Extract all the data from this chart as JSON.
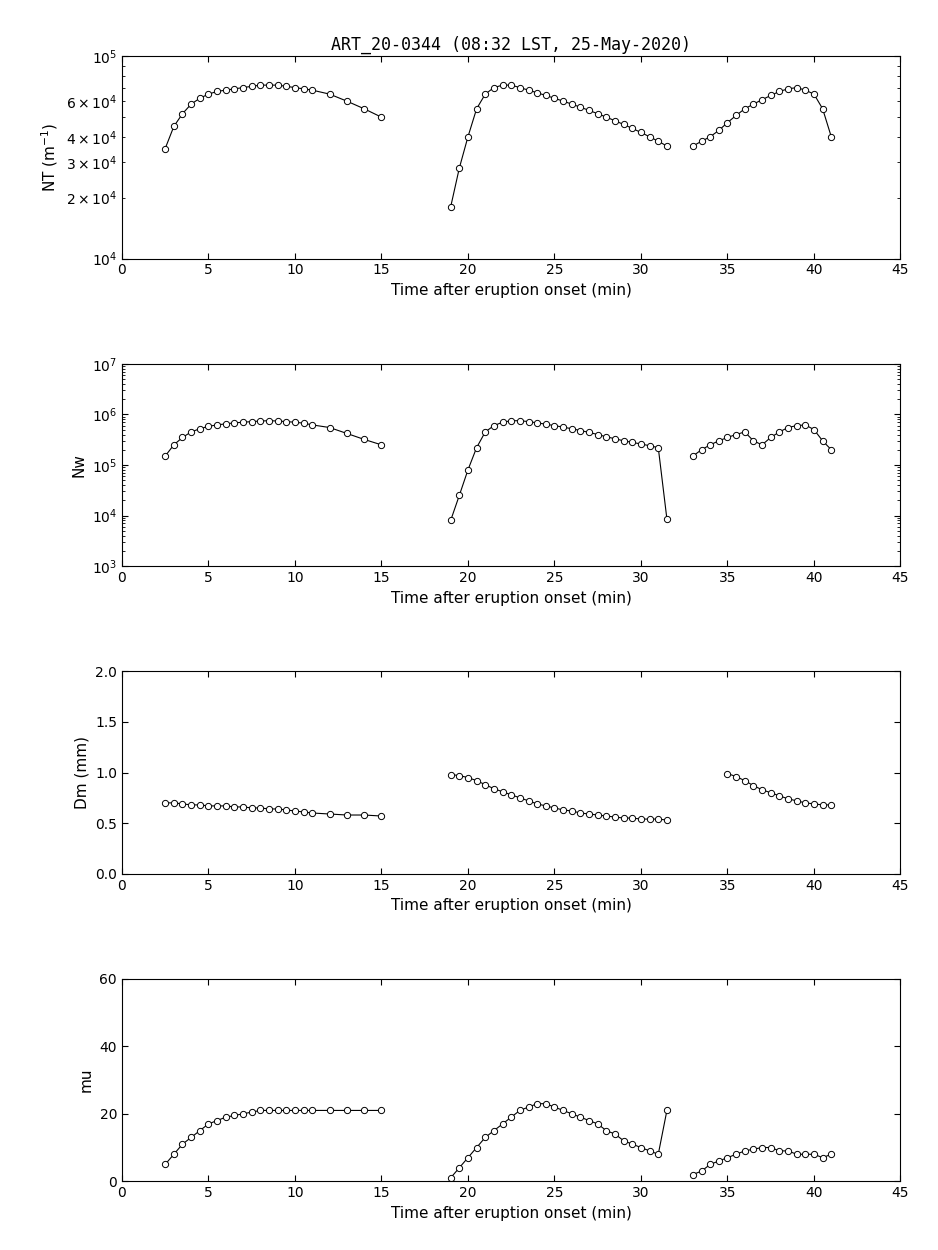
{
  "title": "ART_20-0344 (08:32 LST, 25-May-2020)",
  "xlabel": "Time after eruption onset (min)",
  "xlim": [
    0,
    45
  ],
  "xticks": [
    0,
    5,
    10,
    15,
    20,
    25,
    30,
    35,
    40,
    45
  ],
  "NT_seg1_time": [
    2.5,
    3,
    3.5,
    4,
    4.5,
    5,
    5.5,
    6,
    6.5,
    7,
    7.5,
    8,
    8.5,
    9,
    9.5,
    10,
    10.5,
    11,
    12,
    13,
    14,
    15
  ],
  "NT_seg1_vals": [
    35000.0,
    45000.0,
    52000.0,
    58000.0,
    62000.0,
    65000.0,
    67000.0,
    68000.0,
    69000.0,
    70000.0,
    71000.0,
    72000.0,
    72000.0,
    72000.0,
    71000.0,
    70000.0,
    69000.0,
    68000.0,
    65000.0,
    60000.0,
    55000.0,
    50000.0
  ],
  "NT_seg2_time": [
    19,
    19.5,
    20,
    20.5,
    21,
    21.5,
    22,
    22.5,
    23,
    23.5,
    24,
    24.5,
    25,
    25.5,
    26,
    26.5,
    27,
    27.5,
    28,
    28.5,
    29,
    29.5,
    30,
    30.5,
    31,
    31.5
  ],
  "NT_seg2_vals": [
    18000.0,
    28000.0,
    40000.0,
    55000.0,
    65000.0,
    70000.0,
    72000.0,
    72000.0,
    70000.0,
    68000.0,
    66000.0,
    64000.0,
    62000.0,
    60000.0,
    58000.0,
    56000.0,
    54000.0,
    52000.0,
    50000.0,
    48000.0,
    46000.0,
    44000.0,
    42000.0,
    40000.0,
    38000.0,
    36000.0
  ],
  "NT_seg3_time": [
    33,
    33.5,
    34,
    34.5,
    35,
    35.5,
    36,
    36.5,
    37,
    37.5,
    38,
    38.5,
    39,
    39.5,
    40,
    40.5,
    41
  ],
  "NT_seg3_vals": [
    36000.0,
    38000.0,
    40000.0,
    43000.0,
    47000.0,
    51000.0,
    55000.0,
    58000.0,
    61000.0,
    64000.0,
    67000.0,
    69000.0,
    70000.0,
    68000.0,
    65000.0,
    55000.0,
    40000.0
  ],
  "NT_ylim": [
    10000.0,
    100000.0
  ],
  "Nw_seg1_time": [
    2.5,
    3,
    3.5,
    4,
    4.5,
    5,
    5.5,
    6,
    6.5,
    7,
    7.5,
    8,
    8.5,
    9,
    9.5,
    10,
    10.5,
    11,
    12,
    13,
    14,
    15
  ],
  "Nw_seg1_vals": [
    150000.0,
    250000.0,
    350000.0,
    450000.0,
    520000.0,
    580000.0,
    620000.0,
    650000.0,
    680000.0,
    700000.0,
    720000.0,
    740000.0,
    750000.0,
    740000.0,
    720000.0,
    700000.0,
    670000.0,
    620000.0,
    550000.0,
    420000.0,
    320000.0,
    250000.0
  ],
  "Nw_seg2_time": [
    19,
    19.5,
    20,
    20.5,
    21,
    21.5,
    22,
    22.5,
    23,
    23.5,
    24,
    24.5,
    25,
    25.5,
    26,
    26.5,
    27,
    27.5,
    28,
    28.5,
    29,
    29.5,
    30,
    30.5,
    31,
    31.5
  ],
  "Nw_seg2_vals": [
    8000.0,
    25000.0,
    80000.0,
    220000.0,
    450000.0,
    600000.0,
    700000.0,
    750000.0,
    750000.0,
    720000.0,
    680000.0,
    640000.0,
    600000.0,
    560000.0,
    520000.0,
    480000.0,
    440000.0,
    400000.0,
    360000.0,
    330000.0,
    300000.0,
    280000.0,
    260000.0,
    240000.0,
    220000.0,
    8500.0
  ],
  "Nw_seg3_time": [
    33,
    33.5,
    34,
    34.5,
    35,
    35.5,
    36,
    36.5,
    37,
    37.5,
    38,
    38.5,
    39,
    39.5,
    40,
    40.5,
    41
  ],
  "Nw_seg3_vals": [
    150000.0,
    200000.0,
    250000.0,
    300000.0,
    350000.0,
    400000.0,
    450000.0,
    300000.0,
    250000.0,
    350000.0,
    450000.0,
    550000.0,
    600000.0,
    620000.0,
    500000.0,
    300000.0,
    200000.0
  ],
  "Nw_ylim": [
    1000.0,
    10000000.0
  ],
  "Dm_seg1_time": [
    2.5,
    3,
    3.5,
    4,
    4.5,
    5,
    5.5,
    6,
    6.5,
    7,
    7.5,
    8,
    8.5,
    9,
    9.5,
    10,
    10.5,
    11,
    12,
    13,
    14,
    15
  ],
  "Dm_seg1_vals": [
    0.7,
    0.7,
    0.69,
    0.68,
    0.68,
    0.67,
    0.67,
    0.67,
    0.66,
    0.66,
    0.65,
    0.65,
    0.64,
    0.64,
    0.63,
    0.62,
    0.61,
    0.6,
    0.59,
    0.58,
    0.58,
    0.57
  ],
  "Dm_seg2_time": [
    19,
    19.5,
    20,
    20.5,
    21,
    21.5,
    22,
    22.5,
    23,
    23.5,
    24,
    24.5,
    25,
    25.5,
    26,
    26.5,
    27,
    27.5,
    28,
    28.5,
    29,
    29.5,
    30,
    30.5,
    31,
    31.5
  ],
  "Dm_seg2_vals": [
    0.98,
    0.97,
    0.95,
    0.92,
    0.88,
    0.84,
    0.81,
    0.78,
    0.75,
    0.72,
    0.69,
    0.67,
    0.65,
    0.63,
    0.62,
    0.6,
    0.59,
    0.58,
    0.57,
    0.56,
    0.55,
    0.55,
    0.54,
    0.54,
    0.54,
    0.53
  ],
  "Dm_seg3_time": [
    35,
    35.5,
    36,
    36.5,
    37,
    37.5,
    38,
    38.5,
    39,
    39.5,
    40,
    40.5,
    41
  ],
  "Dm_seg3_vals": [
    0.99,
    0.96,
    0.92,
    0.87,
    0.83,
    0.8,
    0.77,
    0.74,
    0.72,
    0.7,
    0.69,
    0.68,
    0.68
  ],
  "Dm_ylim": [
    0.0,
    2.0
  ],
  "Dm_yticks": [
    0.0,
    0.5,
    1.0,
    1.5,
    2.0
  ],
  "mu_seg1_time": [
    2.5,
    3,
    3.5,
    4,
    4.5,
    5,
    5.5,
    6,
    6.5,
    7,
    7.5,
    8,
    8.5,
    9,
    9.5,
    10,
    10.5,
    11,
    12,
    13,
    14,
    15
  ],
  "mu_seg1_vals": [
    5,
    8,
    11,
    13,
    15,
    17,
    18,
    19,
    19.5,
    20,
    20.5,
    21,
    21,
    21,
    21,
    21,
    21,
    21,
    21,
    21,
    21,
    21
  ],
  "mu_seg2_time": [
    19,
    19.5,
    20,
    20.5,
    21,
    21.5,
    22,
    22.5,
    23,
    23.5,
    24,
    24.5,
    25,
    25.5,
    26,
    26.5,
    27,
    27.5,
    28,
    28.5,
    29,
    29.5,
    30,
    30.5,
    31,
    31.5
  ],
  "mu_seg2_vals": [
    1,
    4,
    7,
    10,
    13,
    15,
    17,
    19,
    21,
    22,
    23,
    23,
    22,
    21,
    20,
    19,
    18,
    17,
    15,
    14,
    12,
    11,
    10,
    9,
    8,
    21
  ],
  "mu_seg3_time": [
    33,
    33.5,
    34,
    34.5,
    35,
    35.5,
    36,
    36.5,
    37,
    37.5,
    38,
    38.5,
    39,
    39.5,
    40,
    40.5,
    41
  ],
  "mu_seg3_vals": [
    2,
    3,
    5,
    6,
    7,
    8,
    9,
    9.5,
    10,
    10,
    9,
    9,
    8,
    8,
    8,
    7,
    8
  ],
  "mu_ylim": [
    0,
    60
  ],
  "mu_yticks": [
    0,
    20,
    40,
    60
  ]
}
